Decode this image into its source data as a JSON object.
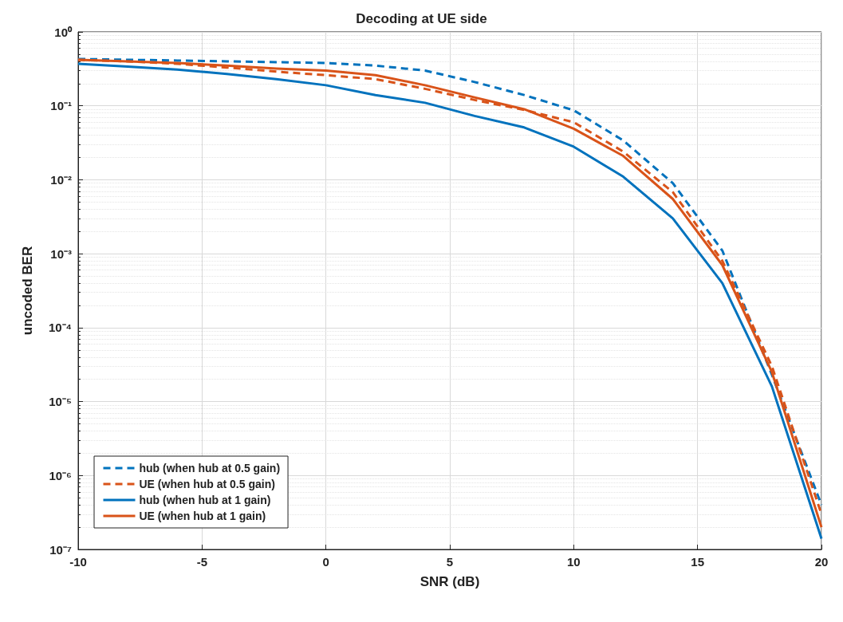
{
  "chart_data": {
    "type": "line",
    "title": "Decoding at UE side",
    "xlabel": "SNR (dB)",
    "ylabel": "uncoded BER",
    "log": "y",
    "grid": true,
    "legend": "bottom left",
    "marker": "none",
    "x": [
      -10,
      -8,
      -6,
      -4,
      -2,
      0,
      2,
      4,
      6,
      8,
      10,
      12,
      14,
      16,
      18,
      20
    ],
    "xlim": [
      -10,
      20
    ],
    "xticks": [
      -10,
      -5,
      0,
      5,
      10,
      15,
      20
    ],
    "ylim": [
      1e-07,
      1
    ],
    "yticks": [
      {
        "value": 1e-07,
        "label": "10⁻⁷"
      },
      {
        "value": 1e-06,
        "label": "10⁻⁶"
      },
      {
        "value": 1e-05,
        "label": "10⁻⁵"
      },
      {
        "value": 0.0001,
        "label": "10⁻⁴"
      },
      {
        "value": 0.001,
        "label": "10⁻³"
      },
      {
        "value": 0.01,
        "label": "10⁻²"
      },
      {
        "value": 0.1,
        "label": "10⁻¹"
      },
      {
        "value": 1,
        "label": "10⁰"
      }
    ],
    "series": [
      {
        "name": "hub (when hub at 0.5 gain)",
        "color": "#0072bd",
        "line_style": "dashed",
        "values": [
          0.43,
          0.42,
          0.41,
          0.4,
          0.39,
          0.38,
          0.35,
          0.3,
          0.21,
          0.14,
          0.087,
          0.034,
          0.009,
          0.0011,
          2.3e-05,
          4e-07
        ]
      },
      {
        "name": "UE (when hub at 0.5 gain)",
        "color": "#d95319",
        "line_style": "dashed",
        "values": [
          0.42,
          0.4,
          0.37,
          0.33,
          0.29,
          0.26,
          0.23,
          0.17,
          0.12,
          0.088,
          0.06,
          0.024,
          0.0068,
          0.0008,
          3e-05,
          3e-07
        ]
      },
      {
        "name": "hub (when hub at 1 gain)",
        "color": "#0072bd",
        "line_style": "solid",
        "values": [
          0.37,
          0.34,
          0.31,
          0.27,
          0.23,
          0.19,
          0.14,
          0.11,
          0.073,
          0.051,
          0.028,
          0.011,
          0.003,
          0.0004,
          1.6e-05,
          1.4e-07
        ]
      },
      {
        "name": "UE (when hub at 1 gain)",
        "color": "#d95319",
        "line_style": "solid",
        "values": [
          0.42,
          0.4,
          0.38,
          0.35,
          0.32,
          0.3,
          0.26,
          0.19,
          0.13,
          0.09,
          0.049,
          0.021,
          0.0055,
          0.0007,
          2.5e-05,
          2e-07
        ]
      }
    ]
  }
}
